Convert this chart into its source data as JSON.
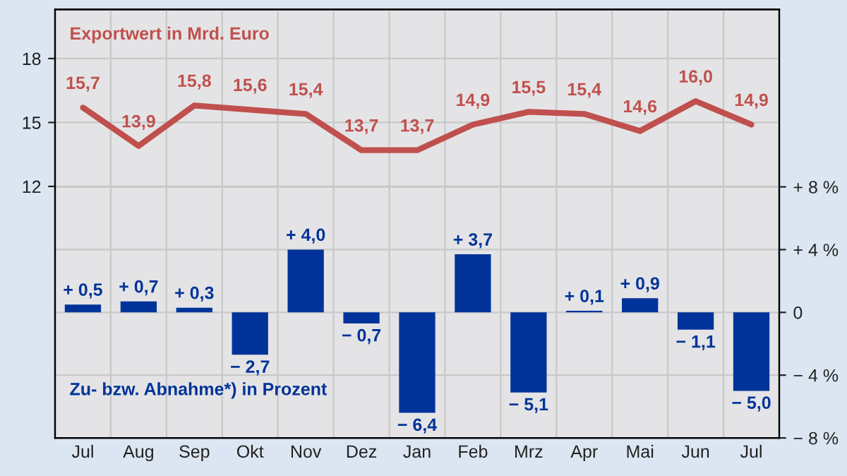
{
  "chart_data": {
    "type": "bar",
    "categories": [
      "Jul",
      "Aug",
      "Sep",
      "Okt",
      "Nov",
      "Dez",
      "Jan",
      "Feb",
      "Mrz",
      "Apr",
      "Mai",
      "Jun",
      "Jul"
    ],
    "series": [
      {
        "type": "line",
        "color": "#c0504d",
        "values": [
          15.7,
          13.9,
          15.8,
          15.6,
          15.4,
          13.7,
          13.7,
          14.9,
          15.5,
          15.4,
          14.6,
          16.0,
          14.9
        ],
        "value_labels": [
          "15,7",
          "13,9",
          "15,8",
          "15,6",
          "15,4",
          "13,7",
          "13,7",
          "14,9",
          "15,5",
          "15,4",
          "14,6",
          "16,0",
          "14,9"
        ]
      },
      {
        "axis": "y2",
        "color": "#003399",
        "values": [
          0.5,
          0.7,
          0.3,
          -2.7,
          4.0,
          -0.7,
          -6.4,
          3.7,
          -5.1,
          0.1,
          0.9,
          -1.1,
          -5.0
        ],
        "value_labels": [
          "+ 0,5",
          "+ 0,7",
          "+ 0,3",
          "− 2,7",
          "+ 4,0",
          "− 0,7",
          "− 6,4",
          "+ 3,7",
          "− 5,1",
          "+ 0,1",
          "+ 0,9",
          "− 1,1",
          "− 5,0"
        ]
      }
    ],
    "annotations": [
      "Exportwert in Mrd. Euro",
      "Zu- bzw. Abnahme*) in Prozent"
    ],
    "ylim": [
      0.2,
      20.3
    ],
    "yticks": [
      12,
      15,
      18
    ],
    "y2lim": [
      -8,
      19.3
    ],
    "y2ticks": [
      {
        "value": 8,
        "label": "+ 8 %"
      },
      {
        "value": 4,
        "label": "+ 4 %"
      },
      {
        "value": 0,
        "label": "0"
      },
      {
        "value": -4,
        "label": "− 4 %"
      },
      {
        "value": -8,
        "label": "− 8 %"
      }
    ],
    "grid": true
  }
}
